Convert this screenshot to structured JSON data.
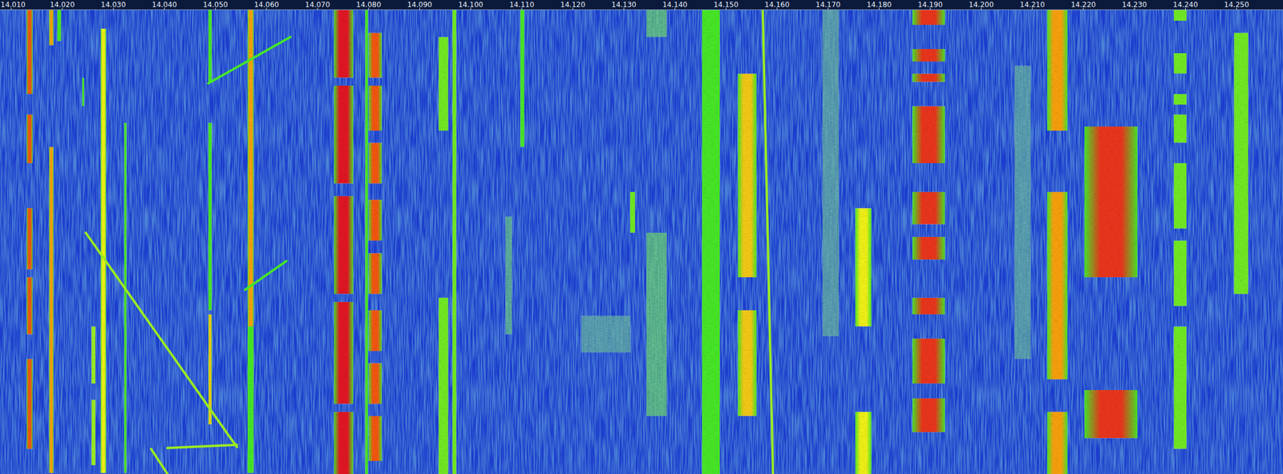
{
  "chart_data": {
    "type": "waterfall",
    "xlim": [
      14.0078,
      14.2591
    ],
    "ylim": [
      0,
      100
    ],
    "tick_labels": "x",
    "grid": false,
    "xticks": [
      {
        "value": 14.01,
        "label": "14.010"
      },
      {
        "value": 14.02,
        "label": "14.020"
      },
      {
        "value": 14.03,
        "label": "14.030"
      },
      {
        "value": 14.04,
        "label": "14.040"
      },
      {
        "value": 14.05,
        "label": "14.050"
      },
      {
        "value": 14.06,
        "label": "14.060"
      },
      {
        "value": 14.07,
        "label": "14.070"
      },
      {
        "value": 14.08,
        "label": "14.080"
      },
      {
        "value": 14.09,
        "label": "14.090"
      },
      {
        "value": 14.1,
        "label": "14.100"
      },
      {
        "value": 14.11,
        "label": "14.110"
      },
      {
        "value": 14.12,
        "label": "14.120"
      },
      {
        "value": 14.13,
        "label": "14.130"
      },
      {
        "value": 14.14,
        "label": "14.140"
      },
      {
        "value": 14.15,
        "label": "14.150"
      },
      {
        "value": 14.16,
        "label": "14.160"
      },
      {
        "value": 14.17,
        "label": "14.170"
      },
      {
        "value": 14.18,
        "label": "14.180"
      },
      {
        "value": 14.19,
        "label": "14.190"
      },
      {
        "value": 14.2,
        "label": "14.200"
      },
      {
        "value": 14.21,
        "label": "14.210"
      },
      {
        "value": 14.22,
        "label": "14.220"
      },
      {
        "value": 14.23,
        "label": "14.230"
      },
      {
        "value": 14.24,
        "label": "14.240"
      },
      {
        "value": 14.25,
        "label": "14.250"
      }
    ],
    "signals": [
      {
        "f": [
          14.013,
          14.0142
        ],
        "t": [
          0,
          18.1
        ],
        "level": 0.9
      },
      {
        "f": [
          14.013,
          14.0142
        ],
        "t": [
          22.5,
          33.0
        ],
        "level": 0.9
      },
      {
        "f": [
          14.013,
          14.0142
        ],
        "t": [
          42.7,
          55.9
        ],
        "level": 0.9
      },
      {
        "f": [
          14.013,
          14.0142
        ],
        "t": [
          57.6,
          69.9
        ],
        "level": 0.9
      },
      {
        "f": [
          14.013,
          14.0142
        ],
        "t": [
          75.2,
          94.6
        ],
        "level": 0.9
      },
      {
        "f": [
          14.0174,
          14.0183
        ],
        "t": [
          0,
          7.6
        ],
        "level": 0.8
      },
      {
        "f": [
          14.0174,
          14.0183
        ],
        "t": [
          29.5,
          99.8
        ],
        "level": 0.8
      },
      {
        "f": [
          14.019,
          14.0198
        ],
        "t": [
          0,
          6.7
        ],
        "level": 0.5
      },
      {
        "f": [
          14.0239,
          14.0243
        ],
        "t": [
          14.6,
          20.7
        ],
        "level": 0.5
      },
      {
        "f": [
          14.0257,
          14.0265
        ],
        "t": [
          68.2,
          80.5
        ],
        "level": 0.6
      },
      {
        "f": [
          14.0257,
          14.0265
        ],
        "t": [
          84.0,
          98.1
        ],
        "level": 0.6
      },
      {
        "f": [
          14.0275,
          14.0286
        ],
        "t": [
          4.0,
          99.8
        ],
        "level": 0.7
      },
      {
        "f": [
          14.0321,
          14.0326
        ],
        "t": [
          24.3,
          99.8
        ],
        "level": 0.5
      },
      {
        "f": [
          14.0486,
          14.0493
        ],
        "t": [
          0,
          15.5
        ],
        "level": 0.5
      },
      {
        "f": [
          14.0486,
          14.0493
        ],
        "t": [
          24.3,
          64.7
        ],
        "level": 0.5
      },
      {
        "f": [
          14.0486,
          14.0493
        ],
        "t": [
          65.6,
          89.3
        ],
        "level": 0.75
      },
      {
        "f": [
          14.0563,
          14.0575
        ],
        "t": [
          0,
          68.2
        ],
        "level": 0.8
      },
      {
        "f": [
          14.0563,
          14.0575
        ],
        "t": [
          68.2,
          99.8
        ],
        "level": 0.5
      },
      {
        "f": [
          14.0732,
          14.077
        ],
        "t": [
          0,
          14.6
        ],
        "level": 1
      },
      {
        "f": [
          14.0732,
          14.077
        ],
        "t": [
          16.3,
          37.4
        ],
        "level": 1
      },
      {
        "f": [
          14.0732,
          14.077
        ],
        "t": [
          40.1,
          61.2
        ],
        "level": 1
      },
      {
        "f": [
          14.0732,
          14.077
        ],
        "t": [
          62.9,
          84.9
        ],
        "level": 1
      },
      {
        "f": [
          14.0732,
          14.077
        ],
        "t": [
          86.6,
          100
        ],
        "level": 1
      },
      {
        "f": [
          14.0793,
          14.0799
        ],
        "t": [
          0,
          100
        ],
        "level": 0.5
      },
      {
        "f": [
          14.08,
          14.0826
        ],
        "t": [
          4.9,
          14.6
        ],
        "level": 0.9
      },
      {
        "f": [
          14.08,
          14.0826
        ],
        "t": [
          16.3,
          26.0
        ],
        "level": 0.9
      },
      {
        "f": [
          14.08,
          14.0826
        ],
        "t": [
          28.6,
          37.4
        ],
        "level": 0.9
      },
      {
        "f": [
          14.08,
          14.0826
        ],
        "t": [
          40.9,
          49.7
        ],
        "level": 0.9
      },
      {
        "f": [
          14.08,
          14.0826
        ],
        "t": [
          52.4,
          61.2
        ],
        "level": 0.9
      },
      {
        "f": [
          14.08,
          14.0826
        ],
        "t": [
          64.7,
          73.5
        ],
        "level": 0.9
      },
      {
        "f": [
          14.08,
          14.0826
        ],
        "t": [
          76.1,
          84.9
        ],
        "level": 0.9
      },
      {
        "f": [
          14.08,
          14.0826
        ],
        "t": [
          87.5,
          97.2
        ],
        "level": 0.9
      },
      {
        "f": [
          14.0937,
          14.0956
        ],
        "t": [
          5.8,
          26.0
        ],
        "level": 0.55
      },
      {
        "f": [
          14.0937,
          14.0956
        ],
        "t": [
          62.0,
          100
        ],
        "level": 0.55
      },
      {
        "f": [
          14.0964,
          14.0972
        ],
        "t": [
          0,
          100
        ],
        "level": 0.55
      },
      {
        "f": [
          14.1068,
          14.1081
        ],
        "t": [
          44.5,
          69.9
        ],
        "level": 0.4
      },
      {
        "f": [
          14.1097,
          14.1105
        ],
        "t": [
          0,
          29.5
        ],
        "level": 0.5
      },
      {
        "f": [
          14.1217,
          14.1313
        ],
        "t": [
          65.9,
          73.8
        ],
        "level": 0.35
      },
      {
        "f": [
          14.1312,
          14.1322
        ],
        "t": [
          39.2,
          48.0
        ],
        "level": 0.55
      },
      {
        "f": [
          14.1344,
          14.1384
        ],
        "t": [
          0,
          5.8
        ],
        "level": 0.45
      },
      {
        "f": [
          14.1344,
          14.1384
        ],
        "t": [
          48.0,
          87.5
        ],
        "level": 0.45
      },
      {
        "f": [
          14.1453,
          14.1488
        ],
        "t": [
          0,
          100
        ],
        "level": 0.5
      },
      {
        "f": [
          14.1523,
          14.156
        ],
        "t": [
          13.7,
          57.6
        ],
        "level": 0.75
      },
      {
        "f": [
          14.1523,
          14.156
        ],
        "t": [
          64.7,
          87.5
        ],
        "level": 0.75
      },
      {
        "f": [
          14.1689,
          14.1721
        ],
        "t": [
          0,
          70.3
        ],
        "level": 0.35
      },
      {
        "f": [
          14.1753,
          14.1785
        ],
        "t": [
          42.7,
          68.2
        ],
        "level": 0.7
      },
      {
        "f": [
          14.1753,
          14.1785
        ],
        "t": [
          86.6,
          100
        ],
        "level": 0.7
      },
      {
        "f": [
          14.1865,
          14.1929
        ],
        "t": [
          0,
          3.2
        ],
        "level": 0.95
      },
      {
        "f": [
          14.1865,
          14.1929
        ],
        "t": [
          8.4,
          11.1
        ],
        "level": 0.95
      },
      {
        "f": [
          14.1865,
          14.1929
        ],
        "t": [
          13.7,
          15.5
        ],
        "level": 0.95
      },
      {
        "f": [
          14.1865,
          14.1929
        ],
        "t": [
          20.7,
          33.0
        ],
        "level": 0.95
      },
      {
        "f": [
          14.1865,
          14.1929
        ],
        "t": [
          39.2,
          46.2
        ],
        "level": 0.95
      },
      {
        "f": [
          14.1865,
          14.1929
        ],
        "t": [
          48.9,
          53.8
        ],
        "level": 0.95
      },
      {
        "f": [
          14.1865,
          14.1929
        ],
        "t": [
          62.0,
          65.6
        ],
        "level": 0.95
      },
      {
        "f": [
          14.1865,
          14.1929
        ],
        "t": [
          70.8,
          80.5
        ],
        "level": 0.95
      },
      {
        "f": [
          14.1865,
          14.1929
        ],
        "t": [
          83.7,
          91.0
        ],
        "level": 0.95
      },
      {
        "f": [
          14.2065,
          14.2097
        ],
        "t": [
          12.0,
          75.2
        ],
        "level": 0.35
      },
      {
        "f": [
          14.2129,
          14.2169
        ],
        "t": [
          0,
          26.0
        ],
        "level": 0.8
      },
      {
        "f": [
          14.2129,
          14.2169
        ],
        "t": [
          39.2,
          79.6
        ],
        "level": 0.8
      },
      {
        "f": [
          14.2129,
          14.2169
        ],
        "t": [
          86.6,
          100
        ],
        "level": 0.8
      },
      {
        "f": [
          14.2202,
          14.2306
        ],
        "t": [
          25.1,
          57.6
        ],
        "level": 0.95
      },
      {
        "f": [
          14.2202,
          14.2306
        ],
        "t": [
          81.9,
          92.3
        ],
        "level": 0.95
      },
      {
        "f": [
          14.2377,
          14.2402
        ],
        "t": [
          0,
          2.3
        ],
        "level": 0.55
      },
      {
        "f": [
          14.2377,
          14.2402
        ],
        "t": [
          9.3,
          13.7
        ],
        "level": 0.55
      },
      {
        "f": [
          14.2377,
          14.2402
        ],
        "t": [
          18.1,
          20.4
        ],
        "level": 0.55
      },
      {
        "f": [
          14.2377,
          14.2402
        ],
        "t": [
          22.5,
          28.6
        ],
        "level": 0.55
      },
      {
        "f": [
          14.2377,
          14.2402
        ],
        "t": [
          33.0,
          47.1
        ],
        "level": 0.55
      },
      {
        "f": [
          14.2377,
          14.2402
        ],
        "t": [
          49.7,
          63.8
        ],
        "level": 0.55
      },
      {
        "f": [
          14.2377,
          14.2402
        ],
        "t": [
          68.2,
          94.6
        ],
        "level": 0.55
      },
      {
        "f": [
          14.2495,
          14.2523
        ],
        "t": [
          4.9,
          61.2
        ],
        "level": 0.55
      }
    ],
    "sweeps": [
      {
        "f": [
          14.0246,
          14.0542
        ],
        "t": [
          48.0,
          94.2
        ],
        "level": 0.6
      },
      {
        "f": [
          14.0374,
          14.0406
        ],
        "t": [
          94.6,
          100
        ],
        "level": 0.6
      },
      {
        "f": [
          14.0406,
          14.0542
        ],
        "t": [
          94.4,
          93.7
        ],
        "level": 0.6
      },
      {
        "f": [
          14.0486,
          14.0647
        ],
        "t": [
          15.8,
          5.8
        ],
        "level": 0.5
      },
      {
        "f": [
          14.0558,
          14.0639
        ],
        "t": [
          60.3,
          54.1
        ],
        "level": 0.5
      },
      {
        "f": [
          14.1572,
          14.1592
        ],
        "t": [
          0,
          100
        ],
        "level": 0.6
      }
    ]
  }
}
